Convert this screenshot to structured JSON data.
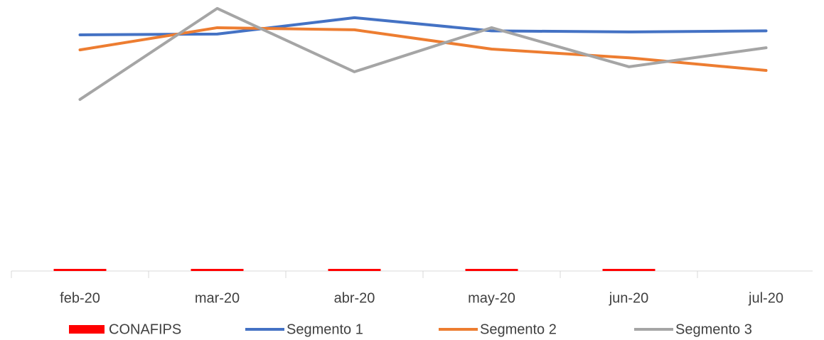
{
  "chart_data": {
    "type": "combo",
    "categories": [
      "feb-20",
      "mar-20",
      "abr-20",
      "may-20",
      "jun-20",
      "jul-20"
    ],
    "ylim": [
      0,
      100
    ],
    "series": [
      {
        "name": "CONAFIPS",
        "type": "bar",
        "color": "#ff0000",
        "values": [
          0.8,
          0.8,
          0.8,
          0.8,
          0.8,
          null
        ]
      },
      {
        "name": "Segmento 1",
        "type": "line",
        "color": "#4472c4",
        "values": [
          89.5,
          89.8,
          96,
          91,
          90.6,
          91
        ]
      },
      {
        "name": "Segmento 2",
        "type": "line",
        "color": "#ed7d31",
        "values": [
          83.8,
          92.2,
          91.4,
          84.1,
          80.8,
          76
        ]
      },
      {
        "name": "Segmento 3",
        "type": "line",
        "color": "#a5a5a5",
        "values": [
          65,
          99.5,
          75.5,
          92.2,
          77.4,
          84.6
        ]
      }
    ]
  }
}
